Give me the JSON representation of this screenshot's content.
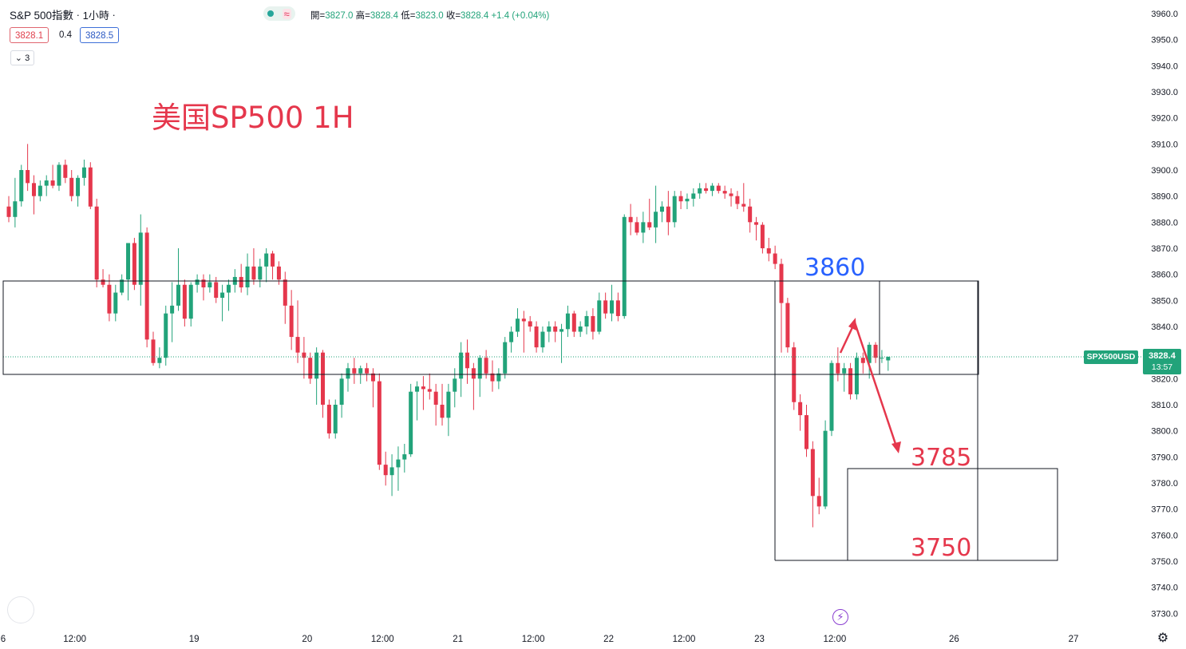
{
  "header": {
    "symbol": "S&P 500指數",
    "interval": "1小時",
    "open_label": "開=",
    "open": "3827.0",
    "high_label": "高=",
    "high": "3828.4",
    "low_label": "低=",
    "low": "3823.0",
    "close_label": "收=",
    "close": "3828.4",
    "change": "+1.4 (+0.04%)",
    "bid": "3828.1",
    "spread": "0.4",
    "ask": "3828.5",
    "indicator_count": "3"
  },
  "badges": {
    "ticker": "SPX500USD",
    "last_price": "3828.4",
    "countdown": "13:57"
  },
  "colors": {
    "up": "#22a37a",
    "down": "#e5374c",
    "annotation_red": "#e5374c",
    "annotation_blue": "#2962ff"
  },
  "icons": [
    "chevron-down-icon",
    "gear-icon",
    "lightning-icon",
    "circle-icon"
  ],
  "chart_data": {
    "type": "candlestick",
    "title": "美国SP500 1H",
    "ylim": [
      3725,
      3965
    ],
    "yticks": [
      3730,
      3740,
      3750,
      3760,
      3770,
      3780,
      3790,
      3800,
      3810,
      3820,
      3830,
      3840,
      3850,
      3860,
      3870,
      3880,
      3890,
      3900,
      3910,
      3920,
      3930,
      3940,
      3950,
      3960
    ],
    "xticks": [
      {
        "label": "6",
        "i": -1.5
      },
      {
        "label": "12:00",
        "i": 10.5
      },
      {
        "label": "19",
        "i": 29.5
      },
      {
        "label": "20",
        "i": 47.5
      },
      {
        "label": "12:00",
        "i": 59.5
      },
      {
        "label": "21",
        "i": 71.5
      },
      {
        "label": "12:00",
        "i": 83.5
      },
      {
        "label": "22",
        "i": 95.5
      },
      {
        "label": "12:00",
        "i": 107.5
      },
      {
        "label": "23",
        "i": 119.5
      },
      {
        "label": "12:00",
        "i": 131.5
      },
      {
        "label": "26",
        "i": 150.5
      },
      {
        "label": "27",
        "i": 169.5
      }
    ],
    "candles": [
      [
        3886,
        3890,
        3880,
        3882
      ],
      [
        3882,
        3897,
        3878,
        3888
      ],
      [
        3888,
        3902,
        3886,
        3900
      ],
      [
        3900,
        3910,
        3892,
        3895
      ],
      [
        3895,
        3898,
        3883,
        3890
      ],
      [
        3890,
        3896,
        3888,
        3894
      ],
      [
        3894,
        3898,
        3890,
        3896
      ],
      [
        3896,
        3902,
        3893,
        3894
      ],
      [
        3894,
        3903,
        3892,
        3902
      ],
      [
        3902,
        3904,
        3895,
        3897
      ],
      [
        3897,
        3900,
        3888,
        3890
      ],
      [
        3890,
        3898,
        3886,
        3897
      ],
      [
        3897,
        3904,
        3894,
        3901
      ],
      [
        3901,
        3903,
        3885,
        3886
      ],
      [
        3886,
        3889,
        3855,
        3858
      ],
      [
        3858,
        3862,
        3855,
        3856
      ],
      [
        3856,
        3860,
        3842,
        3845
      ],
      [
        3845,
        3856,
        3842,
        3853
      ],
      [
        3853,
        3860,
        3852,
        3858
      ],
      [
        3858,
        3872,
        3850,
        3872
      ],
      [
        3872,
        3874,
        3854,
        3856
      ],
      [
        3856,
        3883,
        3848,
        3876
      ],
      [
        3876,
        3878,
        3832,
        3835
      ],
      [
        3835,
        3838,
        3825,
        3826
      ],
      [
        3826,
        3832,
        3824,
        3828
      ],
      [
        3828,
        3848,
        3825,
        3845
      ],
      [
        3845,
        3857,
        3834,
        3848
      ],
      [
        3848,
        3870,
        3846,
        3856
      ],
      [
        3856,
        3858,
        3840,
        3843
      ],
      [
        3843,
        3857,
        3840,
        3856
      ],
      [
        3856,
        3860,
        3853,
        3858
      ],
      [
        3858,
        3860,
        3850,
        3855
      ],
      [
        3855,
        3860,
        3853,
        3857
      ],
      [
        3857,
        3859,
        3849,
        3851
      ],
      [
        3851,
        3856,
        3842,
        3853
      ],
      [
        3853,
        3858,
        3846,
        3856
      ],
      [
        3856,
        3862,
        3853,
        3859
      ],
      [
        3859,
        3864,
        3853,
        3855
      ],
      [
        3855,
        3868,
        3852,
        3863
      ],
      [
        3863,
        3870,
        3856,
        3858
      ],
      [
        3858,
        3866,
        3855,
        3863
      ],
      [
        3863,
        3870,
        3857,
        3868
      ],
      [
        3868,
        3869,
        3858,
        3863
      ],
      [
        3863,
        3865,
        3856,
        3858
      ],
      [
        3858,
        3861,
        3841,
        3848
      ],
      [
        3848,
        3854,
        3831,
        3836
      ],
      [
        3836,
        3850,
        3826,
        3830
      ],
      [
        3830,
        3836,
        3820,
        3828
      ],
      [
        3828,
        3830,
        3818,
        3820
      ],
      [
        3820,
        3832,
        3810,
        3830
      ],
      [
        3830,
        3831,
        3805,
        3810
      ],
      [
        3810,
        3812,
        3797,
        3799
      ],
      [
        3799,
        3812,
        3797,
        3810
      ],
      [
        3810,
        3822,
        3805,
        3820
      ],
      [
        3820,
        3826,
        3815,
        3824
      ],
      [
        3824,
        3828,
        3818,
        3822
      ],
      [
        3822,
        3825,
        3818,
        3824
      ],
      [
        3824,
        3826,
        3819,
        3822
      ],
      [
        3822,
        3824,
        3809,
        3819
      ],
      [
        3819,
        3822,
        3785,
        3787
      ],
      [
        3787,
        3792,
        3779,
        3783
      ],
      [
        3783,
        3791,
        3775,
        3786
      ],
      [
        3786,
        3794,
        3777,
        3789
      ],
      [
        3789,
        3795,
        3784,
        3791
      ],
      [
        3791,
        3818,
        3790,
        3815
      ],
      [
        3815,
        3819,
        3804,
        3817
      ],
      [
        3817,
        3821,
        3808,
        3816
      ],
      [
        3816,
        3822,
        3812,
        3815
      ],
      [
        3815,
        3818,
        3802,
        3810
      ],
      [
        3810,
        3818,
        3802,
        3805
      ],
      [
        3805,
        3818,
        3798,
        3815
      ],
      [
        3815,
        3824,
        3809,
        3820
      ],
      [
        3820,
        3834,
        3813,
        3830
      ],
      [
        3830,
        3835,
        3818,
        3824
      ],
      [
        3824,
        3826,
        3808,
        3820
      ],
      [
        3820,
        3829,
        3813,
        3828
      ],
      [
        3828,
        3831,
        3820,
        3822
      ],
      [
        3822,
        3827,
        3815,
        3819
      ],
      [
        3819,
        3824,
        3816,
        3822
      ],
      [
        3822,
        3836,
        3820,
        3834
      ],
      [
        3834,
        3840,
        3830,
        3838
      ],
      [
        3838,
        3847,
        3836,
        3843
      ],
      [
        3843,
        3846,
        3830,
        3842
      ],
      [
        3842,
        3844,
        3838,
        3840
      ],
      [
        3840,
        3842,
        3830,
        3832
      ],
      [
        3832,
        3840,
        3830,
        3838
      ],
      [
        3838,
        3842,
        3834,
        3840
      ],
      [
        3840,
        3842,
        3834,
        3838
      ],
      [
        3838,
        3841,
        3826,
        3839
      ],
      [
        3839,
        3848,
        3836,
        3845
      ],
      [
        3845,
        3846,
        3836,
        3838
      ],
      [
        3838,
        3842,
        3836,
        3840
      ],
      [
        3840,
        3846,
        3837,
        3844
      ],
      [
        3844,
        3847,
        3835,
        3838
      ],
      [
        3838,
        3853,
        3837,
        3850
      ],
      [
        3850,
        3853,
        3843,
        3845
      ],
      [
        3845,
        3856,
        3842,
        3850
      ],
      [
        3850,
        3853,
        3842,
        3844
      ],
      [
        3844,
        3883,
        3843,
        3882
      ],
      [
        3882,
        3887,
        3875,
        3880
      ],
      [
        3880,
        3882,
        3875,
        3876
      ],
      [
        3876,
        3884,
        3872,
        3880
      ],
      [
        3880,
        3889,
        3877,
        3878
      ],
      [
        3878,
        3894,
        3872,
        3884
      ],
      [
        3884,
        3888,
        3880,
        3886
      ],
      [
        3886,
        3892,
        3875,
        3880
      ],
      [
        3880,
        3892,
        3878,
        3890
      ],
      [
        3890,
        3892,
        3885,
        3888
      ],
      [
        3888,
        3891,
        3885,
        3889
      ],
      [
        3889,
        3893,
        3886,
        3891
      ],
      [
        3891,
        3895,
        3889,
        3893
      ],
      [
        3893,
        3895,
        3891,
        3892
      ],
      [
        3892,
        3895,
        3890,
        3894
      ],
      [
        3894,
        3895,
        3891,
        3892
      ],
      [
        3892,
        3894,
        3889,
        3891
      ],
      [
        3891,
        3893,
        3886,
        3890
      ],
      [
        3890,
        3892,
        3885,
        3887
      ],
      [
        3887,
        3895,
        3884,
        3886
      ],
      [
        3886,
        3889,
        3876,
        3880
      ],
      [
        3880,
        3882,
        3873,
        3879
      ],
      [
        3879,
        3880,
        3868,
        3870
      ],
      [
        3870,
        3874,
        3865,
        3868
      ],
      [
        3868,
        3871,
        3862,
        3864
      ],
      [
        3864,
        3866,
        3830,
        3849
      ],
      [
        3849,
        3851,
        3830,
        3832
      ],
      [
        3832,
        3834,
        3808,
        3811
      ],
      [
        3811,
        3814,
        3800,
        3806
      ],
      [
        3806,
        3810,
        3790,
        3793
      ],
      [
        3793,
        3796,
        3763,
        3775
      ],
      [
        3775,
        3782,
        3768,
        3771
      ],
      [
        3771,
        3804,
        3770,
        3800
      ],
      [
        3800,
        3827,
        3798,
        3826
      ],
      [
        3826,
        3832,
        3819,
        3822
      ],
      [
        3822,
        3826,
        3815,
        3824
      ],
      [
        3824,
        3826,
        3812,
        3814
      ],
      [
        3814,
        3830,
        3812,
        3828
      ],
      [
        3828,
        3830,
        3822,
        3826
      ],
      [
        3826,
        3834,
        3820,
        3833
      ],
      [
        3833,
        3834,
        3826,
        3828
      ],
      [
        3828,
        3831,
        3826,
        3828
      ],
      [
        3827,
        3828.4,
        3823,
        3828.4
      ]
    ],
    "annotations": {
      "title_text": "美国SP500 1H",
      "target_upper": "3860",
      "target_mid": "3785",
      "target_lower": "3750"
    }
  }
}
